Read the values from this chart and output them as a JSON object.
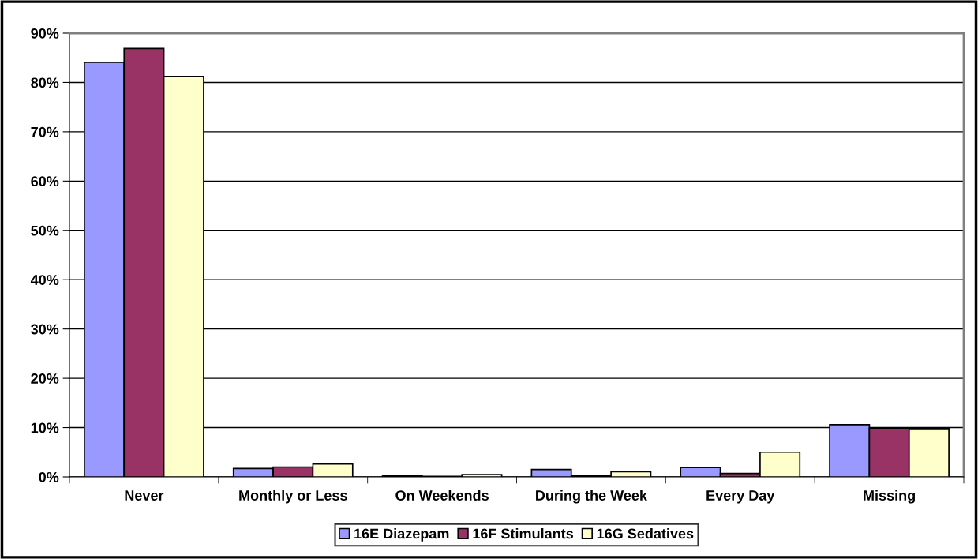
{
  "chart_data": {
    "type": "bar",
    "categories": [
      "Never",
      "Monthly or Less",
      "On Weekends",
      "During the Week",
      "Every Day",
      "Missing"
    ],
    "series": [
      {
        "name": "16E Diazepam",
        "color": "#9999ff",
        "values": [
          84.1,
          1.7,
          0.2,
          1.5,
          1.9,
          10.6
        ]
      },
      {
        "name": "16F Stimulants",
        "color": "#993366",
        "values": [
          86.9,
          2.0,
          0.1,
          0.2,
          0.7,
          9.9
        ]
      },
      {
        "name": "16G Sedatives",
        "color": "#ffffcc",
        "values": [
          81.2,
          2.6,
          0.45,
          1.05,
          5.0,
          9.8
        ]
      }
    ],
    "ylim": [
      0,
      90
    ],
    "yticks": [
      {
        "value": 0,
        "label": "0%"
      },
      {
        "value": 10,
        "label": "10%"
      },
      {
        "value": 20,
        "label": "20%"
      },
      {
        "value": 30,
        "label": "30%"
      },
      {
        "value": 40,
        "label": "40%"
      },
      {
        "value": 50,
        "label": "50%"
      },
      {
        "value": 60,
        "label": "60%"
      },
      {
        "value": 70,
        "label": "70%"
      },
      {
        "value": 80,
        "label": "80%"
      },
      {
        "value": 90,
        "label": "90%"
      }
    ],
    "grid": "y",
    "legend": "bottom"
  }
}
